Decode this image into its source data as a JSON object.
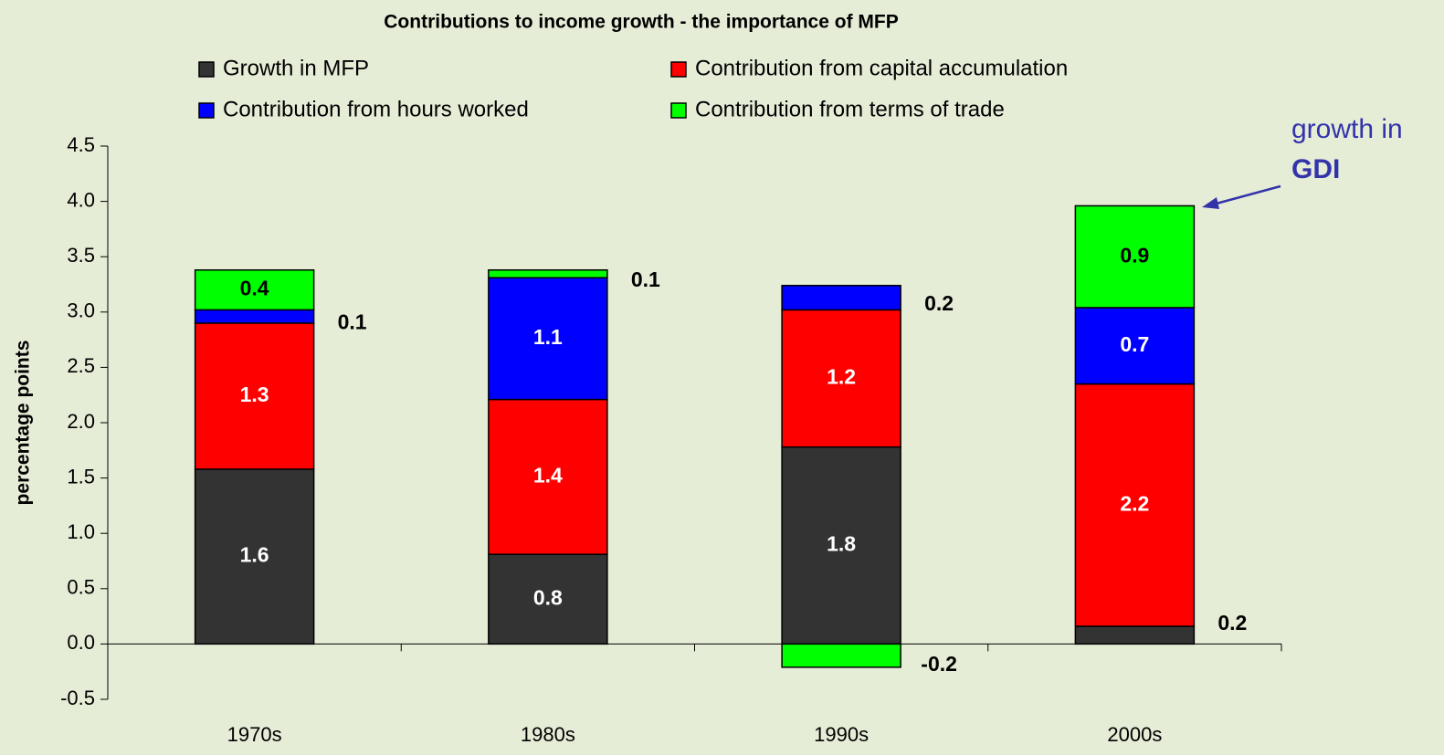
{
  "chart_data": {
    "type": "stacked_bar",
    "title": "Contributions to income growth - the importance of MFP",
    "y_label": "percentage points",
    "categories": [
      "1970s",
      "1980s",
      "1990s",
      "2000s"
    ],
    "series": [
      {
        "name": "Growth in MFP",
        "color": "#333333",
        "values": [
          1.58,
          0.81,
          1.78,
          0.16
        ],
        "value_labels": [
          "1.6",
          "0.8",
          "1.8",
          "0.2"
        ]
      },
      {
        "name": "Contribution from capital accumulation",
        "color": "#ff0000",
        "values": [
          1.32,
          1.4,
          1.24,
          2.19
        ],
        "value_labels": [
          "1.3",
          "1.4",
          "1.2",
          "2.2"
        ]
      },
      {
        "name": "Contribution from hours worked",
        "color": "#0000ff",
        "values": [
          0.12,
          1.1,
          0.22,
          0.69
        ],
        "value_labels": [
          "0.1",
          "1.1",
          "0.2",
          "0.7"
        ]
      },
      {
        "name": "Contribution from terms of trade",
        "color": "#00ff00",
        "values": [
          0.36,
          0.07,
          -0.21,
          0.92
        ],
        "value_labels": [
          "0.4",
          "0.1",
          "-0.2",
          "0.9"
        ]
      }
    ],
    "ylim": [
      -0.5,
      4.5
    ],
    "yticks": [
      -0.5,
      {
        "value": 0,
        "label": "0.0"
      },
      0.5,
      {
        "value": 1,
        "label": "1.0"
      },
      1.5,
      {
        "value": 2,
        "label": "2.0"
      },
      2.5,
      {
        "value": 3,
        "label": "3.0"
      },
      3.5,
      {
        "value": 4,
        "label": "4.0"
      },
      4.5
    ],
    "annotation": [
      "growth in",
      "GDI"
    ]
  }
}
